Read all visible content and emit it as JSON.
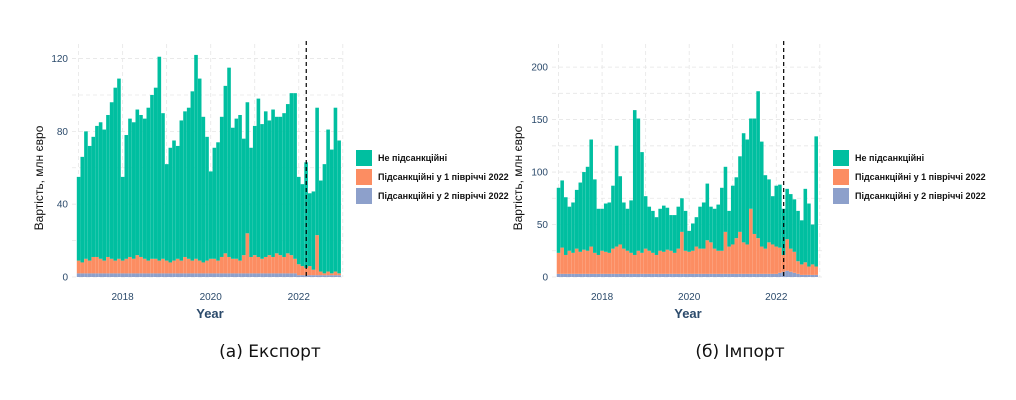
{
  "colors": {
    "not_sanctioned": "#00BFA0",
    "h1_2022": "#FC8D62",
    "h2_2022": "#8DA0CB",
    "axis_text": "#2B4A6B"
  },
  "legend_items": [
    "Не підсанкційні",
    "Підсанкційні у 1 півріччі 2022",
    "Підсанкційні у 2 півріччі 2022"
  ],
  "captions": [
    "(а) Експорт",
    "(б) Імпорт"
  ],
  "chart_data": [
    {
      "type": "bar",
      "stacked": true,
      "xlabel": "Year",
      "ylabel": "Вартість, млн євро",
      "xlim": [
        2016.85,
        2023.05
      ],
      "ylim": [
        0,
        128
      ],
      "xticks": [
        2018,
        2020,
        2022
      ],
      "yticks": [
        0,
        40,
        80,
        120
      ],
      "vline": 2022.17,
      "grid": true,
      "legend_position": "right",
      "x_start": 2017.0,
      "x_step": 0.08333,
      "series": [
        {
          "name": "Підсанкційні у 2 півріччі 2022",
          "values": [
            2,
            2,
            2,
            2,
            2,
            2,
            2,
            2,
            2,
            2,
            2,
            2,
            2,
            2,
            2,
            2,
            2,
            2,
            2,
            2,
            2,
            2,
            2,
            2,
            2,
            2,
            2,
            2,
            2,
            2,
            2,
            2,
            2,
            2,
            2,
            2,
            2,
            2,
            2,
            2,
            2,
            2,
            2,
            2,
            2,
            2,
            2,
            2,
            2,
            2,
            2,
            2,
            2,
            2,
            2,
            2,
            2,
            2,
            2,
            2,
            1,
            1,
            1,
            1,
            1,
            1,
            1,
            1,
            1,
            1,
            1,
            1
          ]
        },
        {
          "name": "Підсанкційні у 1 півріччі 2022",
          "values": [
            7,
            6,
            8,
            7,
            9,
            9,
            8,
            7,
            9,
            8,
            7,
            8,
            7,
            8,
            9,
            8,
            10,
            9,
            8,
            7,
            8,
            8,
            7,
            8,
            7,
            6,
            7,
            8,
            7,
            9,
            8,
            7,
            8,
            7,
            6,
            7,
            8,
            8,
            7,
            9,
            11,
            9,
            8,
            8,
            7,
            10,
            22,
            9,
            10,
            9,
            8,
            9,
            10,
            9,
            11,
            10,
            9,
            11,
            10,
            8,
            6,
            5,
            4,
            5,
            3,
            22,
            2,
            1,
            2,
            1,
            2,
            1
          ]
        },
        {
          "name": "Не підсанкційні",
          "values": [
            46,
            58,
            70,
            63,
            66,
            72,
            75,
            72,
            78,
            86,
            95,
            99,
            46,
            68,
            76,
            75,
            80,
            78,
            77,
            84,
            90,
            94,
            112,
            80,
            53,
            63,
            66,
            62,
            77,
            80,
            83,
            93,
            112,
            100,
            80,
            68,
            48,
            61,
            65,
            77,
            92,
            104,
            72,
            77,
            80,
            64,
            72,
            60,
            71,
            87,
            74,
            80,
            74,
            81,
            75,
            76,
            79,
            82,
            89,
            91,
            48,
            45,
            58,
            40,
            43,
            70,
            50,
            60,
            78,
            68,
            90,
            73
          ]
        }
      ]
    },
    {
      "type": "bar",
      "stacked": true,
      "xlabel": "Year",
      "ylabel": "Вартість, млн євро",
      "xlim": [
        2016.85,
        2023.05
      ],
      "ylim": [
        0,
        222
      ],
      "xticks": [
        2018,
        2020,
        2022
      ],
      "yticks": [
        0,
        50,
        100,
        150,
        200
      ],
      "vline": 2022.17,
      "grid": true,
      "legend_position": "right",
      "x_start": 2017.0,
      "x_step": 0.08333,
      "series": [
        {
          "name": "Підсанкційні у 2 півріччі 2022",
          "values": [
            3,
            3,
            3,
            3,
            3,
            3,
            3,
            3,
            3,
            3,
            3,
            3,
            3,
            3,
            3,
            3,
            3,
            3,
            3,
            3,
            3,
            3,
            3,
            3,
            3,
            3,
            3,
            3,
            3,
            3,
            3,
            3,
            3,
            3,
            3,
            3,
            3,
            3,
            3,
            3,
            3,
            3,
            3,
            3,
            3,
            3,
            3,
            3,
            3,
            3,
            3,
            3,
            3,
            3,
            3,
            3,
            3,
            3,
            3,
            3,
            3,
            4,
            5,
            6,
            5,
            4,
            3,
            2,
            2,
            2,
            2,
            2
          ]
        },
        {
          "name": "Підсанкційні у 1 півріччі 2022",
          "values": [
            20,
            25,
            18,
            22,
            20,
            24,
            21,
            23,
            22,
            26,
            20,
            18,
            22,
            21,
            20,
            24,
            26,
            28,
            24,
            22,
            20,
            18,
            22,
            20,
            24,
            22,
            20,
            18,
            22,
            21,
            23,
            22,
            20,
            24,
            40,
            22,
            21,
            22,
            26,
            24,
            24,
            32,
            30,
            24,
            22,
            22,
            40,
            26,
            28,
            34,
            40,
            30,
            28,
            62,
            38,
            34,
            26,
            24,
            30,
            28,
            26,
            24,
            16,
            30,
            22,
            20,
            12,
            10,
            12,
            8,
            10,
            8
          ]
        },
        {
          "name": "Не підсанкційні",
          "values": [
            62,
            64,
            55,
            42,
            48,
            56,
            66,
            74,
            80,
            102,
            70,
            44,
            40,
            46,
            48,
            60,
            96,
            65,
            44,
            40,
            50,
            138,
            126,
            96,
            50,
            42,
            40,
            36,
            40,
            44,
            40,
            34,
            36,
            40,
            32,
            38,
            20,
            26,
            28,
            40,
            44,
            54,
            34,
            38,
            44,
            60,
            62,
            34,
            56,
            58,
            72,
            104,
            100,
            86,
            110,
            140,
            100,
            70,
            60,
            46,
            58,
            60,
            44,
            48,
            52,
            50,
            48,
            42,
            70,
            60,
            38,
            124
          ]
        }
      ]
    }
  ]
}
